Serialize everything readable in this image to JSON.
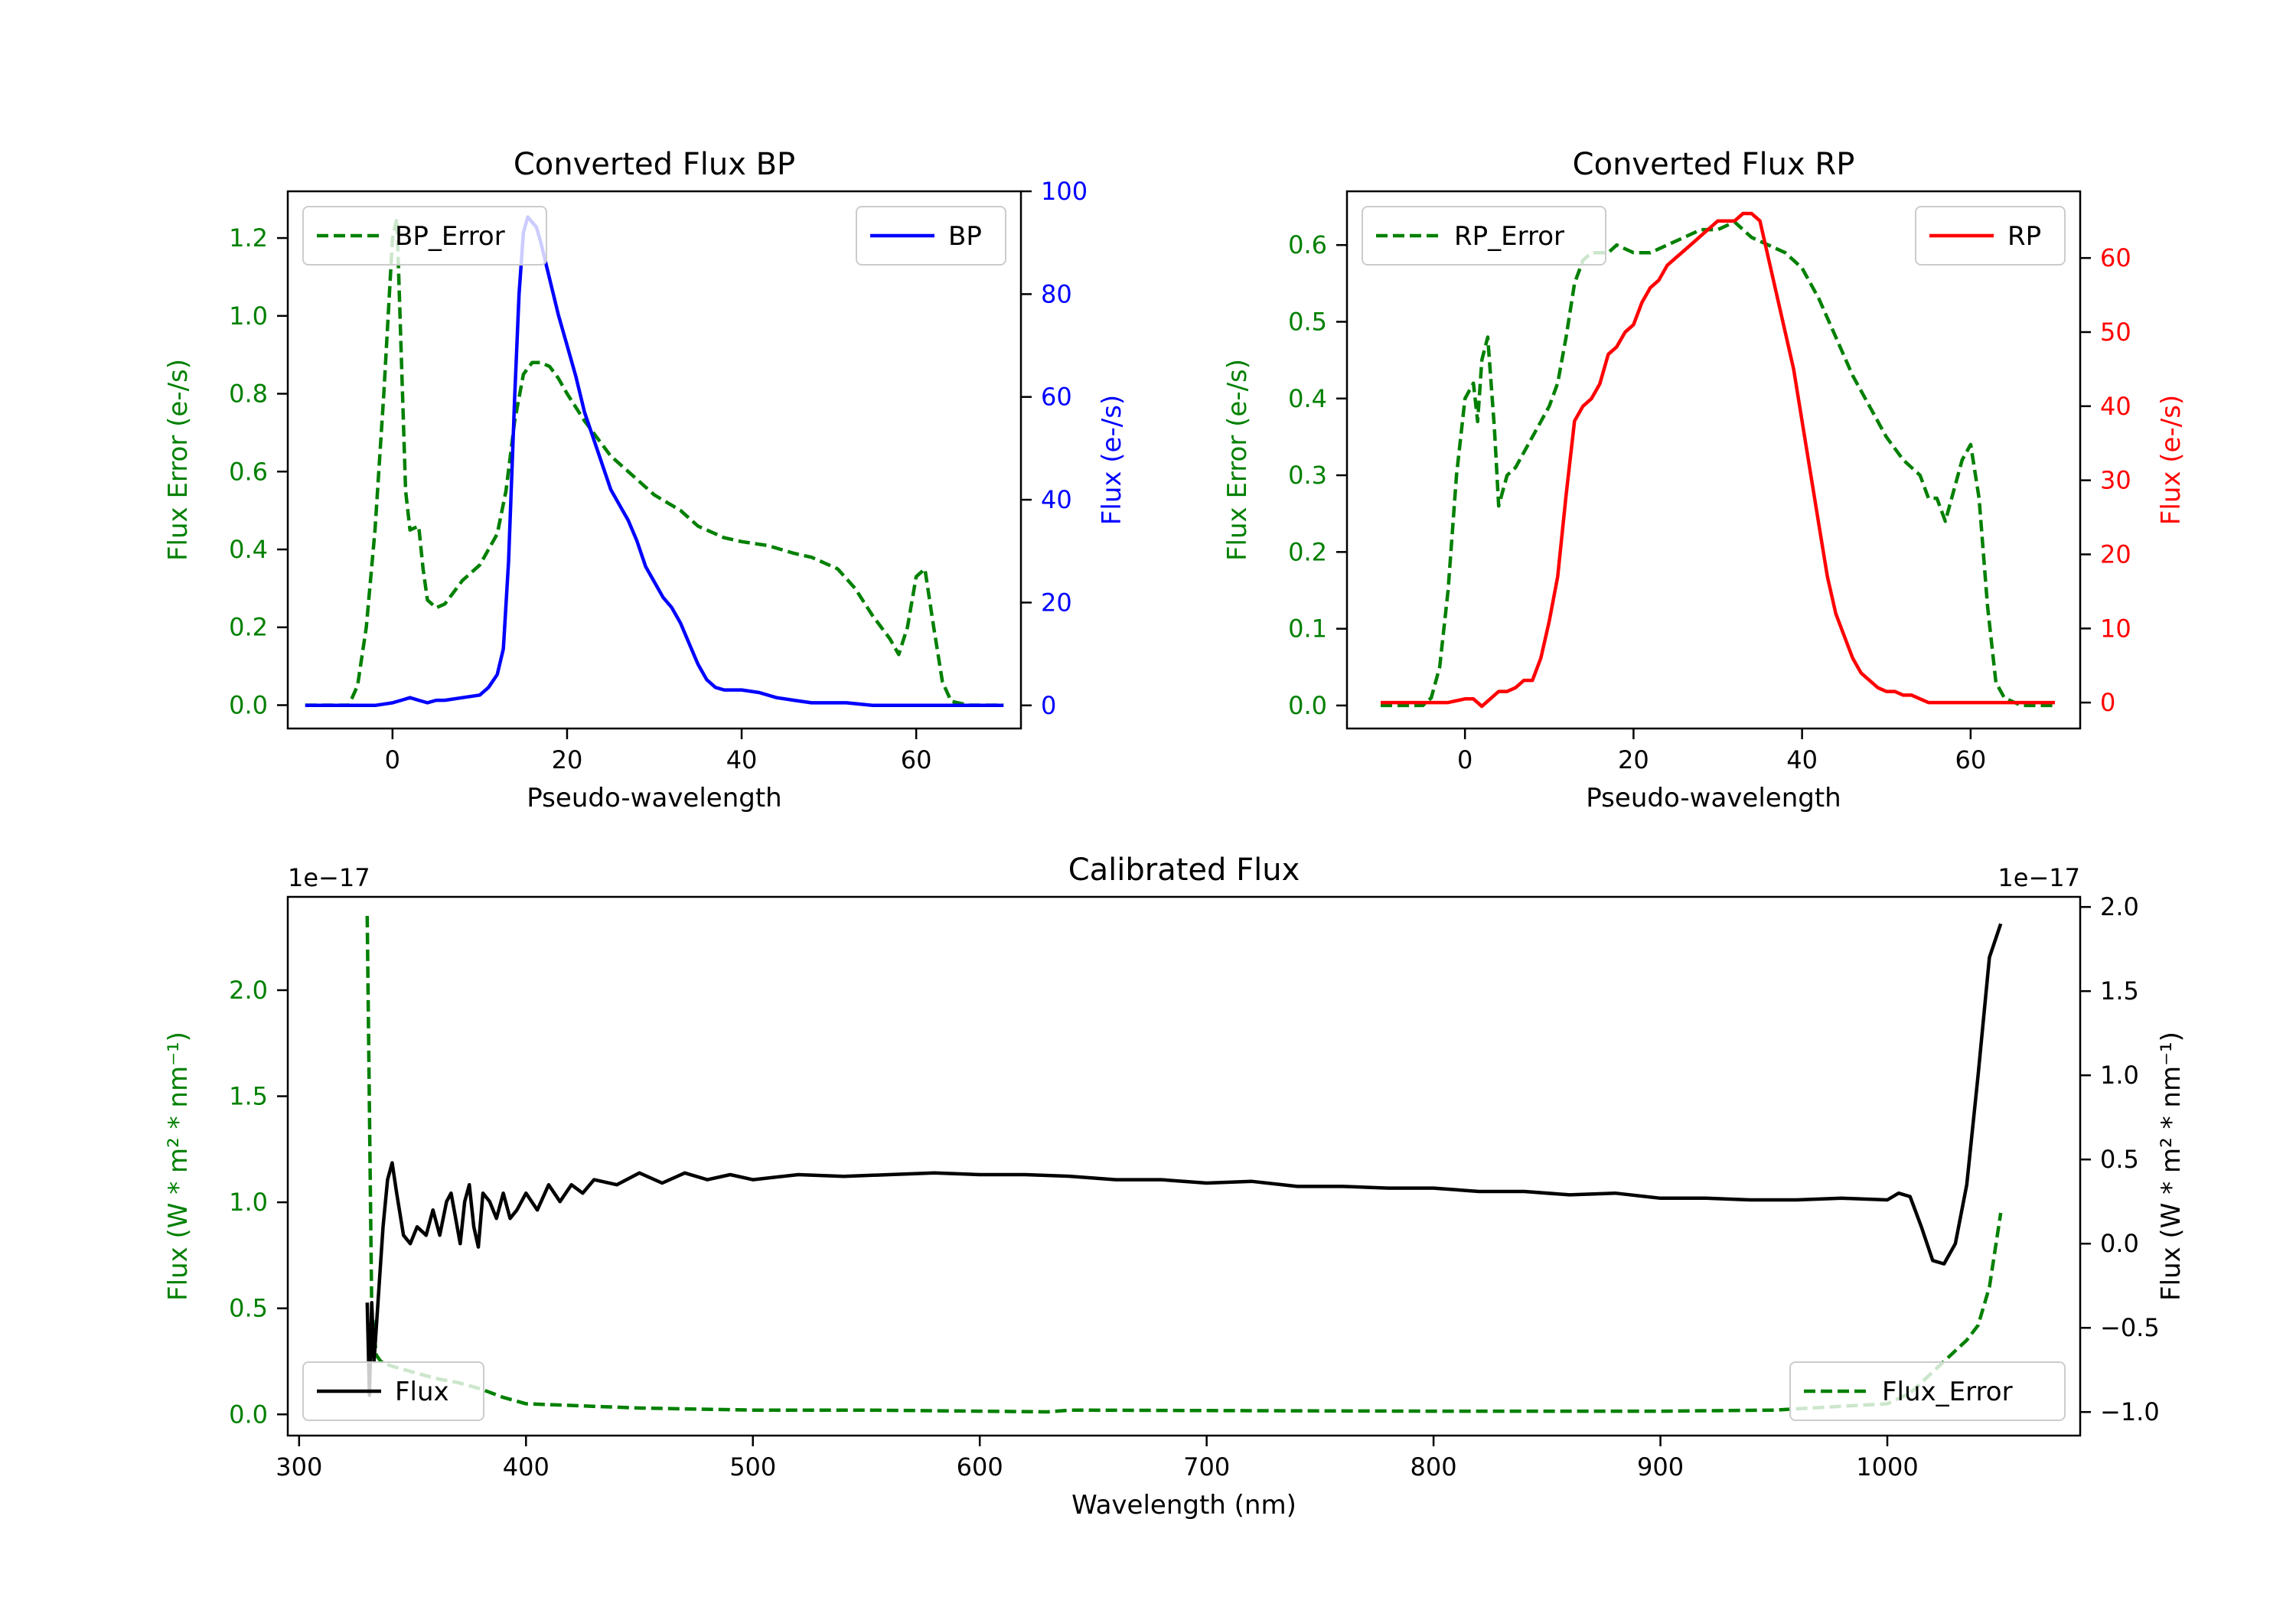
{
  "chart_data": [
    {
      "type": "line",
      "title": "Converted Flux BP",
      "xlabel": "Pseudo-wavelength",
      "ylabel_left": "Flux Error (e-/s)",
      "ylabel_right": "Flux (e-/s)",
      "xlim": [
        -12,
        72
      ],
      "ylim_left": [
        -0.06,
        1.32
      ],
      "ylim_right": [
        -4.5,
        100
      ],
      "xticks": [
        "0",
        "20",
        "40",
        "60"
      ],
      "yticks_left": [
        "0.0",
        "0.2",
        "0.4",
        "0.6",
        "0.8",
        "1.0",
        "1.2"
      ],
      "yticks_right": [
        "0",
        "20",
        "40",
        "60",
        "80",
        "100"
      ],
      "left_color": "#008000",
      "right_color": "#0000ff",
      "series": [
        {
          "name": "BP_Error",
          "axis": "left",
          "style": "dashed",
          "color": "#008000",
          "x": [
            -10,
            -5,
            -4,
            -3,
            -2,
            -1,
            0,
            0.5,
            1,
            1.5,
            2,
            3,
            3.5,
            4,
            5,
            6,
            7,
            8,
            10,
            12,
            13,
            14,
            15,
            16,
            17,
            18,
            19,
            20,
            22,
            25,
            28,
            30,
            33,
            35,
            38,
            40,
            43,
            46,
            48,
            51,
            53,
            55,
            57,
            58,
            59,
            60,
            61,
            62,
            63,
            64,
            66,
            70
          ],
          "values": [
            0.0,
            0.0,
            0.05,
            0.2,
            0.45,
            0.8,
            1.2,
            1.25,
            0.9,
            0.55,
            0.45,
            0.46,
            0.35,
            0.27,
            0.25,
            0.26,
            0.29,
            0.32,
            0.36,
            0.44,
            0.55,
            0.73,
            0.85,
            0.88,
            0.88,
            0.87,
            0.84,
            0.8,
            0.73,
            0.64,
            0.58,
            0.54,
            0.5,
            0.46,
            0.43,
            0.42,
            0.41,
            0.39,
            0.38,
            0.35,
            0.3,
            0.23,
            0.17,
            0.13,
            0.2,
            0.33,
            0.35,
            0.2,
            0.06,
            0.01,
            0.0,
            0.0
          ]
        },
        {
          "name": "BP",
          "axis": "right",
          "style": "solid",
          "color": "#0000ff",
          "x": [
            -10,
            -2,
            0,
            1,
            2,
            3,
            4,
            5,
            6,
            8,
            10,
            11,
            12,
            12.7,
            13.3,
            14,
            14.5,
            15,
            15.5,
            16,
            16.5,
            17,
            18,
            19,
            20,
            21,
            22,
            23,
            24,
            25,
            26,
            27,
            28,
            29,
            30,
            31,
            32,
            33,
            34,
            35,
            36,
            37,
            38,
            40,
            42,
            44,
            46,
            48,
            50,
            52,
            55,
            58,
            62,
            66,
            70
          ],
          "values": [
            0.0,
            0.0,
            0.5,
            1.0,
            1.5,
            1.0,
            0.5,
            1.0,
            1.0,
            1.5,
            2.0,
            3.5,
            6.0,
            11.0,
            28.0,
            60.0,
            80.0,
            92.0,
            95.0,
            94.0,
            93.0,
            90.0,
            83.0,
            76.0,
            70.0,
            64.0,
            57.0,
            52.0,
            47.0,
            42.0,
            39.0,
            36.0,
            32.0,
            27.0,
            24.0,
            21.0,
            19.0,
            16.0,
            12.0,
            8.0,
            5.0,
            3.5,
            3.0,
            3.0,
            2.5,
            1.5,
            1.0,
            0.5,
            0.5,
            0.5,
            0.0,
            0.0,
            0.0,
            0.0,
            0.0
          ]
        }
      ],
      "legend_left": {
        "label": "BP_Error",
        "placement": "upper left"
      },
      "legend_right": {
        "label": "BP",
        "placement": "upper right"
      }
    },
    {
      "type": "line",
      "title": "Converted Flux RP",
      "xlabel": "Pseudo-wavelength",
      "ylabel_left": "Flux Error (e-/s)",
      "ylabel_right": "Flux (e-/s)",
      "xlim": [
        -14,
        73
      ],
      "ylim_left": [
        -0.03,
        0.67
      ],
      "ylim_right": [
        -3.5,
        69
      ],
      "xticks": [
        "0",
        "20",
        "40",
        "60"
      ],
      "yticks_left": [
        "0.0",
        "0.1",
        "0.2",
        "0.3",
        "0.4",
        "0.5",
        "0.6"
      ],
      "yticks_right": [
        "0",
        "10",
        "20",
        "30",
        "40",
        "50",
        "60"
      ],
      "left_color": "#008000",
      "right_color": "#ff0000",
      "series": [
        {
          "name": "RP_Error",
          "axis": "left",
          "style": "dashed",
          "color": "#008000",
          "x": [
            -10,
            -5,
            -4,
            -3,
            -2,
            -1,
            0,
            1,
            1.5,
            2,
            2.7,
            3.5,
            4,
            5,
            6,
            7,
            8,
            9,
            10,
            11,
            12,
            13,
            14,
            15,
            16,
            17,
            18,
            20,
            22,
            24,
            26,
            28,
            30,
            32,
            34,
            36,
            38,
            40,
            42,
            44,
            46,
            48,
            50,
            52,
            54,
            55,
            56,
            57,
            58,
            59,
            60,
            61,
            62,
            63,
            64,
            66,
            70
          ],
          "values": [
            0.0,
            0.0,
            0.01,
            0.05,
            0.15,
            0.3,
            0.4,
            0.42,
            0.37,
            0.45,
            0.48,
            0.36,
            0.26,
            0.3,
            0.31,
            0.33,
            0.35,
            0.37,
            0.39,
            0.42,
            0.48,
            0.55,
            0.58,
            0.59,
            0.59,
            0.59,
            0.6,
            0.59,
            0.59,
            0.6,
            0.61,
            0.62,
            0.62,
            0.63,
            0.61,
            0.6,
            0.59,
            0.57,
            0.53,
            0.48,
            0.43,
            0.39,
            0.35,
            0.32,
            0.3,
            0.27,
            0.27,
            0.24,
            0.28,
            0.32,
            0.34,
            0.27,
            0.13,
            0.03,
            0.01,
            0.0,
            0.0
          ]
        },
        {
          "name": "RP",
          "axis": "right",
          "style": "solid",
          "color": "#ff0000",
          "x": [
            -10,
            -2,
            0,
            1,
            2,
            3,
            4,
            5,
            6,
            7,
            8,
            9,
            10,
            11,
            12,
            13,
            14,
            15,
            16,
            17,
            18,
            19,
            20,
            21,
            22,
            23,
            24,
            25,
            26,
            27,
            28,
            29,
            30,
            31,
            32,
            33,
            34,
            35,
            36,
            37,
            38,
            39,
            40,
            41,
            42,
            43,
            44,
            45,
            46,
            47,
            48,
            49,
            50,
            51,
            52,
            53,
            54,
            55,
            56,
            57,
            58,
            59,
            60,
            62,
            66,
            70
          ],
          "values": [
            0.0,
            0.0,
            0.5,
            0.5,
            -0.5,
            0.5,
            1.5,
            1.5,
            2.0,
            3.0,
            3.0,
            6.0,
            11.0,
            17.0,
            28.0,
            38.0,
            40.0,
            41.0,
            43.0,
            47.0,
            48.0,
            50.0,
            51.0,
            54.0,
            56.0,
            57.0,
            59.0,
            60.0,
            61.0,
            62.0,
            63.0,
            64.0,
            65.0,
            65.0,
            65.0,
            66.0,
            66.0,
            65.0,
            60.0,
            55.0,
            50.0,
            45.0,
            38.0,
            31.0,
            24.0,
            17.0,
            12.0,
            9.0,
            6.0,
            4.0,
            3.0,
            2.0,
            1.5,
            1.5,
            1.0,
            1.0,
            0.5,
            0.0,
            0.0,
            0.0,
            0.0,
            0.0,
            0.0,
            0.0,
            0.0,
            0.0
          ]
        }
      ],
      "legend_left": {
        "label": "RP_Error",
        "placement": "upper left"
      },
      "legend_right": {
        "label": "RP",
        "placement": "upper right"
      }
    },
    {
      "type": "line",
      "title": "Calibrated Flux",
      "xlabel": "Wavelength (nm)",
      "ylabel_left": "Flux (W * m² * nm⁻¹)",
      "ylabel_right": "Flux (W * m² * nm⁻¹)",
      "offset_left": "1e−17",
      "offset_right": "1e−17",
      "xlim": [
        295,
        1085
      ],
      "ylim_left": [
        -0.1,
        2.44
      ],
      "ylim_right": [
        -1.14,
        2.06
      ],
      "xticks": [
        "300",
        "400",
        "500",
        "600",
        "700",
        "800",
        "900",
        "1000"
      ],
      "yticks_left": [
        "0.0",
        "0.5",
        "1.0",
        "1.5",
        "2.0"
      ],
      "yticks_right": [
        "−1.0",
        "−0.5",
        "0.0",
        "0.5",
        "1.0",
        "1.5",
        "2.0"
      ],
      "left_color": "#008000",
      "right_color": "#000000",
      "series": [
        {
          "name": "Flux_Error",
          "axis": "left",
          "style": "dashed",
          "color": "#008000",
          "x": [
            330,
            332,
            334,
            336,
            340,
            350,
            360,
            370,
            380,
            390,
            400,
            450,
            500,
            550,
            600,
            630,
            640,
            700,
            800,
            900,
            950,
            1000,
            1010,
            1020,
            1030,
            1035,
            1040,
            1045,
            1050
          ],
          "values": [
            2.35,
            0.5,
            0.28,
            0.25,
            0.23,
            0.2,
            0.17,
            0.15,
            0.12,
            0.08,
            0.05,
            0.03,
            0.02,
            0.02,
            0.015,
            0.012,
            0.02,
            0.018,
            0.015,
            0.015,
            0.02,
            0.05,
            0.1,
            0.2,
            0.3,
            0.35,
            0.42,
            0.6,
            0.95
          ]
        },
        {
          "name": "Flux",
          "axis": "right",
          "style": "solid",
          "color": "#000000",
          "x": [
            330,
            331,
            332,
            333,
            335,
            337,
            339,
            341,
            343,
            346,
            349,
            352,
            356,
            359,
            362,
            365,
            367,
            369,
            371,
            373,
            375,
            377,
            379,
            381,
            384,
            387,
            390,
            393,
            396,
            400,
            405,
            410,
            415,
            420,
            425,
            430,
            440,
            450,
            460,
            470,
            480,
            490,
            500,
            520,
            540,
            560,
            580,
            600,
            620,
            640,
            660,
            680,
            700,
            720,
            740,
            760,
            780,
            800,
            820,
            840,
            860,
            880,
            900,
            920,
            940,
            960,
            980,
            1000,
            1005,
            1010,
            1015,
            1020,
            1025,
            1030,
            1035,
            1040,
            1045,
            1050
          ],
          "values": [
            -0.35,
            -0.9,
            -0.35,
            -0.7,
            -0.3,
            0.1,
            0.38,
            0.48,
            0.3,
            0.05,
            0.0,
            0.1,
            0.05,
            0.2,
            0.05,
            0.25,
            0.3,
            0.15,
            0.0,
            0.25,
            0.35,
            0.1,
            -0.02,
            0.3,
            0.25,
            0.15,
            0.3,
            0.15,
            0.2,
            0.3,
            0.2,
            0.35,
            0.25,
            0.35,
            0.3,
            0.38,
            0.35,
            0.42,
            0.36,
            0.42,
            0.38,
            0.41,
            0.38,
            0.41,
            0.4,
            0.41,
            0.42,
            0.41,
            0.41,
            0.4,
            0.38,
            0.38,
            0.36,
            0.37,
            0.34,
            0.34,
            0.33,
            0.33,
            0.31,
            0.31,
            0.29,
            0.3,
            0.27,
            0.27,
            0.26,
            0.26,
            0.27,
            0.26,
            0.3,
            0.28,
            0.1,
            -0.1,
            -0.12,
            0.0,
            0.35,
            1.0,
            1.7,
            1.9
          ]
        }
      ],
      "legend_left": {
        "label": "Flux_Error",
        "placement": "lower right"
      },
      "legend_right": {
        "label": "Flux",
        "placement": "lower left"
      }
    }
  ]
}
